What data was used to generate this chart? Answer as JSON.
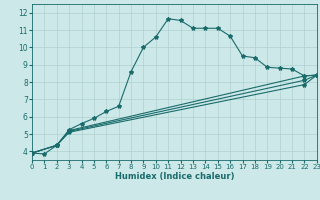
{
  "xlabel": "Humidex (Indice chaleur)",
  "xlim": [
    0,
    23
  ],
  "ylim": [
    3.5,
    12.5
  ],
  "xticks": [
    0,
    1,
    2,
    3,
    4,
    5,
    6,
    7,
    8,
    9,
    10,
    11,
    12,
    13,
    14,
    15,
    16,
    17,
    18,
    19,
    20,
    21,
    22,
    23
  ],
  "yticks": [
    4,
    5,
    6,
    7,
    8,
    9,
    10,
    11,
    12
  ],
  "bg_color": "#cce8e8",
  "grid_color": "#b0d0d0",
  "line_color": "#1a6b6b",
  "lines": [
    {
      "x": [
        0,
        1,
        2,
        3,
        4,
        5,
        6,
        7,
        8,
        9,
        10,
        11,
        12,
        13,
        14,
        15,
        16,
        17,
        18,
        19,
        20,
        21,
        22,
        23
      ],
      "y": [
        3.9,
        3.85,
        4.35,
        5.25,
        5.6,
        5.9,
        6.3,
        6.6,
        8.6,
        10.0,
        10.6,
        11.65,
        11.55,
        11.1,
        11.1,
        11.1,
        10.65,
        9.5,
        9.4,
        8.85,
        8.8,
        8.75,
        8.35,
        8.4
      ]
    },
    {
      "x": [
        0,
        2,
        3,
        22,
        23
      ],
      "y": [
        3.9,
        4.35,
        5.2,
        8.35,
        8.4
      ]
    },
    {
      "x": [
        0,
        2,
        3,
        22,
        23
      ],
      "y": [
        3.9,
        4.35,
        5.15,
        8.1,
        8.4
      ]
    },
    {
      "x": [
        0,
        2,
        3,
        22,
        23
      ],
      "y": [
        3.9,
        4.35,
        5.1,
        7.85,
        8.4
      ]
    }
  ],
  "markers": [
    [
      0,
      1,
      2,
      3,
      4,
      5,
      6,
      7,
      8,
      9,
      10,
      11,
      12,
      13,
      14,
      15,
      16,
      17,
      18,
      19,
      20,
      21,
      22,
      23
    ],
    [
      0,
      2,
      3,
      22,
      23
    ],
    [
      0,
      2,
      3,
      22,
      23
    ],
    [
      0,
      2,
      3,
      22,
      23
    ]
  ]
}
